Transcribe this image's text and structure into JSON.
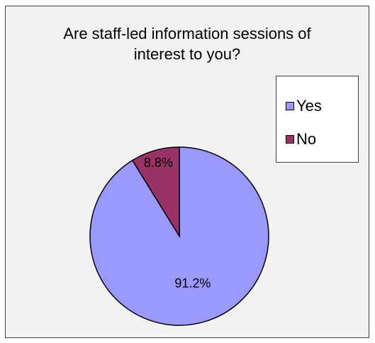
{
  "chart_data": {
    "type": "pie",
    "title": "Are staff-led information sessions of interest to you?",
    "title_lines": [
      "Are staff-led information sessions of",
      "interest to you?"
    ],
    "categories": [
      "Yes",
      "No"
    ],
    "values": [
      91.2,
      8.8
    ],
    "data_labels": [
      "91.2%",
      "8.8%"
    ],
    "colors": [
      "#9999ff",
      "#993366"
    ],
    "legend_position": "right"
  }
}
